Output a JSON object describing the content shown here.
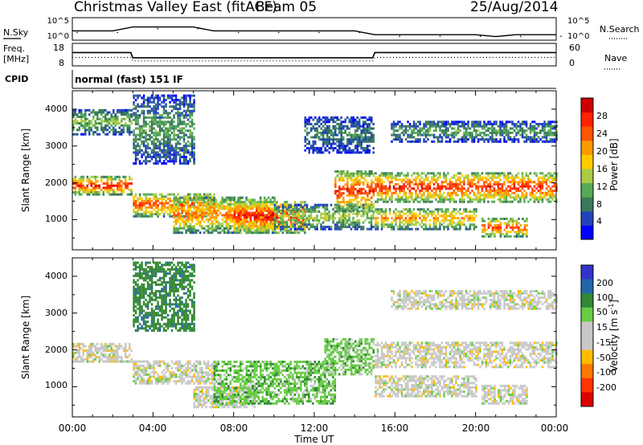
{
  "header": {
    "title": "Christmas Valley East (fitACF)",
    "beam": "Beam 05",
    "date": "25/Aug/2014"
  },
  "summary_panels": {
    "nsky_label": "N.Sky",
    "nsky_ticks": [
      "10^5",
      "10^0"
    ],
    "nsearch_label": "N.Search",
    "nsearch_ticks": [
      "10^5",
      "10^0"
    ],
    "freq_label_1": "Freq.",
    "freq_label_2": "[MHz]",
    "freq_ticks": [
      "18",
      "8"
    ],
    "nave_label": "Nave",
    "nave_ticks": [
      "60",
      "0"
    ],
    "cpid_label": "CPID",
    "cpid_value": "normal (fast) 151 IF"
  },
  "x_axis": {
    "label": "Time UT",
    "ticks": [
      "00:00",
      "04:00",
      "08:00",
      "12:00",
      "16:00",
      "20:00",
      "00:00"
    ]
  },
  "power_panel": {
    "ylabel": "Slant Range [km]",
    "yticks": [
      "4000",
      "3000",
      "2000",
      "1000"
    ],
    "colorbar_label": "Power [dB]",
    "colorbar_ticks": [
      "28",
      "24",
      "20",
      "16",
      "12",
      "8",
      "4"
    ]
  },
  "velocity_panel": {
    "ylabel": "Slant Range [km]",
    "yticks": [
      "4000",
      "3000",
      "2000",
      "1000"
    ],
    "colorbar_label": "Velocity [m s",
    "colorbar_label_sup": "-1",
    "colorbar_label_end": "]",
    "colorbar_ticks": [
      "200",
      "100",
      "50",
      "15",
      "-15",
      "-50",
      "-100",
      "-200"
    ]
  },
  "colors": {
    "power_scale": [
      "#0000ff",
      "#2244bb",
      "#3a7a5a",
      "#55aa55",
      "#aacc44",
      "#ffcc00",
      "#ff9900",
      "#ff5500",
      "#ff2200",
      "#cc0000"
    ],
    "velocity_scale": [
      "#3333cc",
      "#2266aa",
      "#338833",
      "#66cc44",
      "#c8c8c8",
      "#c8c8c8",
      "#ffbb00",
      "#ff7700",
      "#ff3300",
      "#dd0000"
    ]
  },
  "chart_data": [
    {
      "type": "line",
      "panel": "N.Sky / N.Search",
      "x_hours": [
        0,
        1,
        2,
        3,
        4,
        5,
        6,
        7,
        8,
        9,
        10,
        11,
        12,
        13,
        14,
        15,
        16,
        17,
        18,
        19,
        20,
        21,
        22,
        23,
        24
      ],
      "series": [
        {
          "name": "N.Sky",
          "values": [
            2,
            2,
            2,
            3,
            3,
            3,
            3,
            2,
            2,
            2,
            2,
            2,
            2,
            2,
            2,
            1,
            1,
            1,
            1,
            1,
            1,
            0.5,
            1,
            1,
            1
          ]
        }
      ],
      "ylim": [
        0,
        5
      ],
      "yscale": "log"
    },
    {
      "type": "line",
      "panel": "Freq. / Nave",
      "x_hours": [
        0,
        2.9,
        3,
        14.9,
        15,
        24
      ],
      "series": [
        {
          "name": "Freq.",
          "values": [
            14,
            14,
            11.5,
            11.5,
            14,
            14
          ]
        },
        {
          "name": "Nave",
          "values": [
            22,
            22,
            12,
            12,
            22,
            22
          ]
        }
      ],
      "ylim_freq": [
        8,
        18
      ],
      "ylim_nave": [
        0,
        60
      ]
    },
    {
      "type": "heatmap",
      "panel": "power",
      "xlim_hours": [
        0,
        24
      ],
      "ylim_km": [
        180,
        4500
      ],
      "zlim_db": [
        0,
        30
      ],
      "regions": [
        {
          "t0": 0,
          "t1": 2.9,
          "r0": 1650,
          "r1": 2150,
          "peak_db": 26
        },
        {
          "t0": 0,
          "t1": 2.9,
          "r0": 3300,
          "r1": 4000,
          "peak_db": 12
        },
        {
          "t0": 3,
          "t1": 7,
          "r0": 1050,
          "r1": 1700,
          "peak_db": 24
        },
        {
          "t0": 3,
          "t1": 6,
          "r0": 2500,
          "r1": 4400,
          "peak_db": 10
        },
        {
          "t0": 5,
          "t1": 10,
          "r0": 600,
          "r1": 1600,
          "peak_db": 22
        },
        {
          "t0": 8,
          "t1": 11.5,
          "r0": 600,
          "r1": 1500,
          "peak_db": 28
        },
        {
          "t0": 10,
          "t1": 14.9,
          "r0": 700,
          "r1": 1400,
          "peak_db": 14
        },
        {
          "t0": 11.5,
          "t1": 14.9,
          "r0": 2800,
          "r1": 3800,
          "peak_db": 8
        },
        {
          "t0": 13,
          "t1": 14.9,
          "r0": 1200,
          "r1": 2300,
          "peak_db": 26
        },
        {
          "t0": 15,
          "t1": 24,
          "r0": 1450,
          "r1": 2250,
          "peak_db": 26
        },
        {
          "t0": 15,
          "t1": 20,
          "r0": 700,
          "r1": 1300,
          "peak_db": 20
        },
        {
          "t0": 15.8,
          "t1": 24,
          "r0": 3100,
          "r1": 3650,
          "peak_db": 10
        },
        {
          "t0": 20.3,
          "t1": 22.5,
          "r0": 500,
          "r1": 1000,
          "peak_db": 24
        }
      ]
    },
    {
      "type": "heatmap",
      "panel": "velocity",
      "xlim_hours": [
        0,
        24
      ],
      "ylim_km": [
        180,
        4500
      ],
      "zlim_ms": [
        -250,
        250
      ],
      "regions": [
        {
          "t0": 0,
          "t1": 2.9,
          "r0": 1650,
          "r1": 2150,
          "vel": 0
        },
        {
          "t0": 3,
          "t1": 7,
          "r0": 1050,
          "r1": 1700,
          "vel": 0
        },
        {
          "t0": 3,
          "t1": 6,
          "r0": 2500,
          "r1": 4400,
          "vel": 60
        },
        {
          "t0": 6,
          "t1": 9,
          "r0": 400,
          "r1": 1000,
          "vel": 0
        },
        {
          "t0": 7,
          "t1": 13,
          "r0": 500,
          "r1": 1700,
          "vel": 30
        },
        {
          "t0": 12.5,
          "t1": 14.9,
          "r0": 1300,
          "r1": 2300,
          "vel": 25
        },
        {
          "t0": 15,
          "t1": 24,
          "r0": 1500,
          "r1": 2200,
          "vel": 0
        },
        {
          "t0": 15,
          "t1": 20,
          "r0": 700,
          "r1": 1300,
          "vel": 0
        },
        {
          "t0": 15.8,
          "t1": 24,
          "r0": 3100,
          "r1": 3600,
          "vel": 0
        },
        {
          "t0": 20.3,
          "t1": 22.5,
          "r0": 500,
          "r1": 1000,
          "vel": 0
        }
      ]
    }
  ]
}
